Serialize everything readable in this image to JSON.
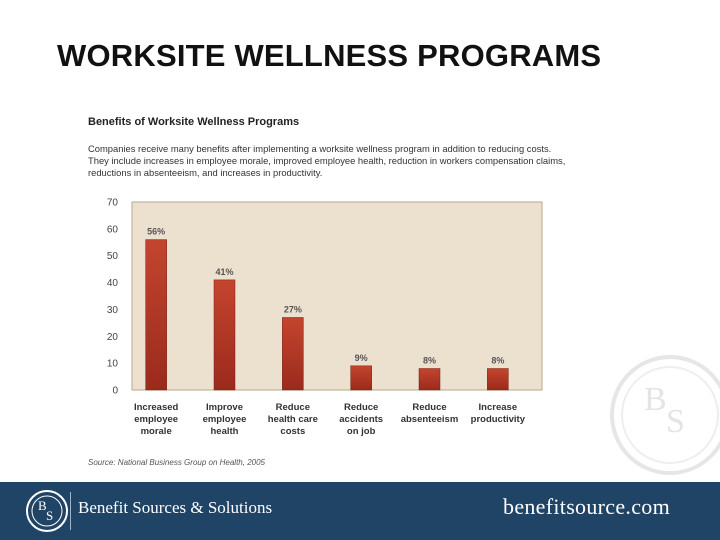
{
  "slide": {
    "title": "WORKSITE WELLNESS PROGRAMS"
  },
  "figure": {
    "title": "Benefits of Worksite Wellness Programs",
    "description": "Companies receive many benefits after implementing a worksite wellness program in addition to reducing costs. They include increases in employee morale, improved employee health, reduction in workers compensation claims, reductions in absenteeism, and increases in productivity.",
    "source": "Source: National Business Group on Health, 2005"
  },
  "chart_data": {
    "type": "bar",
    "categories": [
      [
        "Increased",
        "employee",
        "morale"
      ],
      [
        "Improve",
        "employee",
        "health"
      ],
      [
        "Reduce",
        "health care",
        "costs"
      ],
      [
        "Reduce",
        "accidents",
        "on job"
      ],
      [
        "Reduce",
        "absenteeism"
      ],
      [
        "Increase",
        "productivity"
      ]
    ],
    "values": [
      56,
      41,
      27,
      9,
      8,
      8
    ],
    "value_labels": [
      "56%",
      "41%",
      "27%",
      "9%",
      "8%",
      "8%"
    ],
    "ylim": [
      0,
      70
    ],
    "yticks": [
      0,
      10,
      20,
      30,
      40,
      50,
      60,
      70
    ],
    "colors": {
      "bar": "#9b2a1c",
      "bar_light": "#c4452e",
      "plot_bg": "#ece0cf",
      "frame": "#b9a88f"
    }
  },
  "footer": {
    "company": "Benefit Sources & Solutions",
    "website": "benefitsource.com",
    "background": "#1f4466",
    "logo_text": "BSS"
  }
}
